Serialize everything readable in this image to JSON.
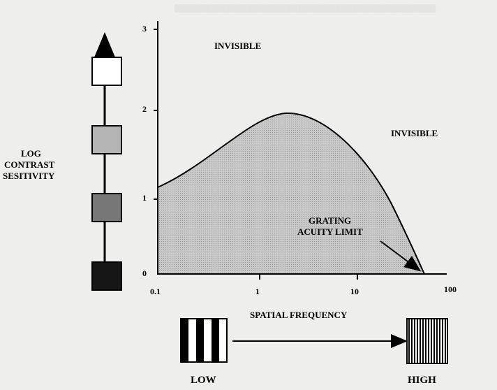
{
  "diagram": {
    "labels": {
      "invisible_top": "INVISIBLE",
      "invisible_right": "INVISIBLE",
      "y_axis": [
        "LOG",
        "CONTRAST",
        "SESITIVITY"
      ],
      "acuity": [
        "GRATING",
        "ACUITY LIMIT"
      ],
      "x_axis": "SPATIAL FREQUENCY",
      "low": "LOW",
      "high": "HIGH"
    },
    "y_ticks": [
      "0",
      "1",
      "2",
      "3"
    ],
    "x_ticks": [
      "0.1",
      "1",
      "10",
      "100"
    ],
    "contrast_swatches": [
      {
        "level": "white",
        "color": "#ffffff"
      },
      {
        "level": "light-gray",
        "color": "#b4b4b4"
      },
      {
        "level": "dark-gray",
        "color": "#777777"
      },
      {
        "level": "black",
        "color": "#161616"
      }
    ],
    "colors": {
      "curve_fill": "#c4c4c4",
      "background": "#eeeeec",
      "ink": "#000000"
    }
  }
}
